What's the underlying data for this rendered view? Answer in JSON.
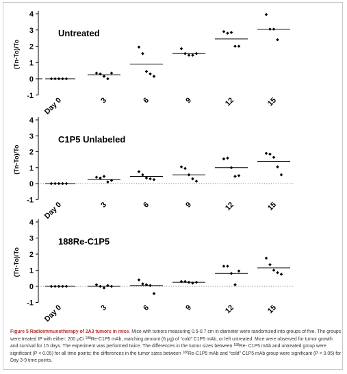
{
  "colors": {
    "marker": "#000000",
    "axis": "#000000",
    "zero_line": "#000000",
    "figure_label": "#b5312f",
    "caption_text": "#333333"
  },
  "chart_data": [
    {
      "type": "scatter",
      "title": "Untreated",
      "ylabel": "(Tn-To)/To",
      "categories": [
        "Day 0",
        "3",
        "6",
        "9",
        "12",
        "15"
      ],
      "ylim": [
        -1,
        4
      ],
      "yticks": [
        -1,
        0,
        1,
        2,
        3,
        4
      ],
      "zero_line_style": "solid",
      "points": [
        [
          0,
          0,
          0,
          0,
          0
        ],
        [
          0.35,
          0.3,
          0.15,
          0.0,
          0.35
        ],
        [
          1.95,
          1.55,
          0.45,
          0.3,
          0.15
        ],
        [
          1.85,
          1.55,
          1.45,
          1.45,
          1.55
        ],
        [
          2.9,
          2.8,
          2.85,
          2.0,
          2.0
        ],
        [
          3.95,
          3.05,
          3.05,
          2.4
        ]
      ],
      "means": [
        0,
        0.25,
        0.9,
        1.55,
        2.45,
        3.05
      ]
    },
    {
      "type": "scatter",
      "title": "C1P5  Unlabeled",
      "ylabel": "(Tn-To)/To",
      "categories": [
        "Day 0",
        "3",
        "6",
        "9",
        "12",
        "15"
      ],
      "ylim": [
        -1,
        4
      ],
      "yticks": [
        -1,
        0,
        1,
        2,
        3,
        4
      ],
      "zero_line_style": "dotted",
      "points": [
        [
          0,
          0,
          0,
          0,
          0
        ],
        [
          0.4,
          0.35,
          0.45,
          0.1,
          0.2
        ],
        [
          0.75,
          0.55,
          0.35,
          0.3,
          0.25
        ],
        [
          1.05,
          0.95,
          0.55,
          0.3,
          0.15
        ],
        [
          1.55,
          1.6,
          1.0,
          0.45,
          0.5
        ],
        [
          1.9,
          1.85,
          1.65,
          1.05,
          0.55
        ]
      ],
      "means": [
        0,
        0.25,
        0.45,
        0.55,
        1.0,
        1.4
      ]
    },
    {
      "type": "scatter",
      "title": "188Re-C1P5",
      "ylabel": "(Tn-To)/To",
      "categories": [
        "Day 0",
        "3",
        "6",
        "9",
        "12",
        "15"
      ],
      "ylim": [
        -1,
        4
      ],
      "yticks": [
        -1,
        0,
        1,
        2,
        3,
        4
      ],
      "zero_line_style": "dotted",
      "points": [
        [
          0,
          0,
          0,
          0,
          0
        ],
        [
          0.1,
          0.0,
          -0.1,
          0.05,
          0.0
        ],
        [
          0.4,
          0.15,
          0.1,
          0.05,
          -0.45
        ],
        [
          0.3,
          0.3,
          0.25,
          0.2,
          0.25
        ],
        [
          1.25,
          1.25,
          0.8,
          0.1,
          0.95
        ],
        [
          1.75,
          1.35,
          1.0,
          0.85,
          0.75
        ]
      ],
      "means": [
        0,
        0.0,
        0.05,
        0.25,
        0.8,
        1.15
      ]
    }
  ],
  "caption": {
    "label": "Figure 5 Radioimmunotherapy of 2A3 tumors in mice",
    "line1": ". Mice with tumors measuring 0.5-0.7 cm in diameter were randomized into groups of",
    "line2a": "five. The groups were treated IP with either: 200 μCi ",
    "line2sup": "188",
    "line2b": "Re-C1P5 mAb, matching amount (6 μg) of “cold” C1P5 mAb, or left untreated. Mice were",
    "line3": "observed for tumor growth and survival for 15 days. The experiment was performed twice. The differences in the tumor sizes between ",
    "line3sup": "188",
    "line3b": "Re-",
    "line4": "C1P5 mAb and untreated group were significant (P < 0.05) for all time points; the differences in the tumor sizes between ",
    "line4sup": "188",
    "line4b": "Re-C1P5 mAb and",
    "line5": "“cold” C1P5 mAb group were significant (P < 0.05) for Day 3-9 time points."
  }
}
